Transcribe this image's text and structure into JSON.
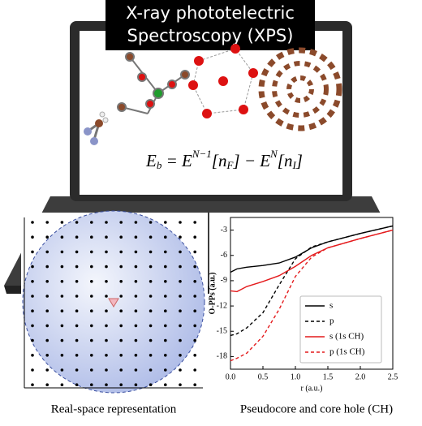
{
  "header": {
    "lines": [
      "X-ray phototelectric",
      "Spectroscopy (XPS)"
    ]
  },
  "equation": [
    "E",
    "b",
    " = E",
    "N−1",
    "[n",
    "F",
    "] − E",
    "N",
    "[n",
    "I",
    "]"
  ],
  "captions": [
    "Real-space representation",
    "Pseudocore and core hole (CH)"
  ],
  "chart_data": {
    "type": "line",
    "x_label": "r (a.u.)",
    "y_label": "O-PPs (a.u.)",
    "x": [
      0,
      0.1,
      0.25,
      0.5,
      0.75,
      1,
      1.25,
      1.5,
      2,
      2.5
    ],
    "series": [
      {
        "name": "s",
        "color": "#000000",
        "dash": false,
        "values": [
          -8,
          -7.6,
          -7.4,
          -7.2,
          -6.9,
          -6.2,
          -5.1,
          -4.4,
          -3.4,
          -2.5
        ]
      },
      {
        "name": "p",
        "color": "#000000",
        "dash": true,
        "values": [
          -15.5,
          -15.3,
          -14.6,
          -12.8,
          -9.5,
          -6.4,
          -5.0,
          -4.4,
          -3.4,
          -2.5
        ]
      },
      {
        "name": "s (1s CH)",
        "color": "#e41a1c",
        "dash": false,
        "values": [
          -10.2,
          -10.3,
          -9.7,
          -9.1,
          -8.4,
          -7.3,
          -6.0,
          -5.1,
          -4.0,
          -3.0
        ]
      },
      {
        "name": "p (1s CH)",
        "color": "#e41a1c",
        "dash": true,
        "values": [
          -18.5,
          -18.2,
          -17.6,
          -15.6,
          -12.4,
          -8.5,
          -6.2,
          -5.1,
          -4.0,
          -3.0
        ]
      }
    ],
    "xlim": [
      0,
      2.5
    ],
    "xticks": [
      {
        "value": 0,
        "label": "0.0"
      },
      0.5,
      {
        "value": 1,
        "label": "1.0"
      },
      1.5,
      {
        "value": 2,
        "label": "2.0"
      },
      2.5
    ],
    "ylim": [
      -19.5,
      -1.5
    ],
    "yticks": [
      -18,
      -15,
      -12,
      -9,
      -6,
      -3
    ],
    "legend": "lower-right"
  }
}
